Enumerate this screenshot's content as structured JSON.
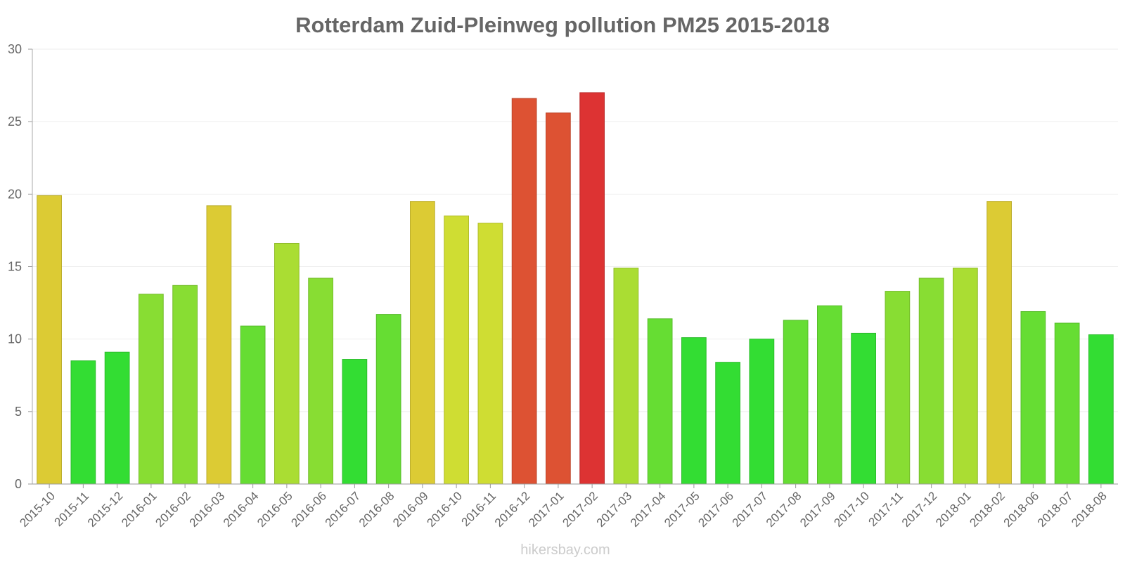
{
  "chart_data": {
    "type": "bar",
    "title": "Rotterdam Zuid-Pleinweg pollution PM25 2015-2018",
    "xlabel": "",
    "ylabel": "",
    "ylim": [
      0,
      30
    ],
    "yticks": [
      0,
      5,
      10,
      15,
      20,
      25,
      30
    ],
    "grid": true,
    "categories": [
      "2015-10",
      "2015-11",
      "2015-12",
      "2016-01",
      "2016-02",
      "2016-03",
      "2016-04",
      "2016-05",
      "2016-06",
      "2016-07",
      "2016-08",
      "2016-09",
      "2016-10",
      "2016-11",
      "2016-12",
      "2017-01",
      "2017-02",
      "2017-03",
      "2017-04",
      "2017-05",
      "2017-06",
      "2017-07",
      "2017-08",
      "2017-09",
      "2017-10",
      "2017-11",
      "2017-12",
      "2018-01",
      "2018-02",
      "2018-06",
      "2018-07",
      "2018-08"
    ],
    "values": [
      19.9,
      8.5,
      9.1,
      13.1,
      13.7,
      19.2,
      10.9,
      16.6,
      14.2,
      8.6,
      11.7,
      19.5,
      18.5,
      18.0,
      26.6,
      25.6,
      27.0,
      14.9,
      11.4,
      10.1,
      8.4,
      10.0,
      11.3,
      12.3,
      10.4,
      13.3,
      14.2,
      14.9,
      19.5,
      11.9,
      11.1,
      10.3
    ],
    "colors": [
      "#dccb34",
      "#33dd33",
      "#33dd33",
      "#88dd33",
      "#88dd33",
      "#dccb34",
      "#66dd33",
      "#aadd33",
      "#88dd33",
      "#33dd33",
      "#66dd33",
      "#dccb34",
      "#cfdd33",
      "#cfdd33",
      "#dd5233",
      "#dd5233",
      "#dd3333",
      "#aadd33",
      "#66dd33",
      "#33dd33",
      "#33dd33",
      "#33dd33",
      "#66dd33",
      "#66dd33",
      "#33dd33",
      "#88dd33",
      "#88dd33",
      "#aadd33",
      "#dccb34",
      "#66dd33",
      "#66dd33",
      "#33dd33"
    ]
  },
  "credit": "hikersbay.com"
}
